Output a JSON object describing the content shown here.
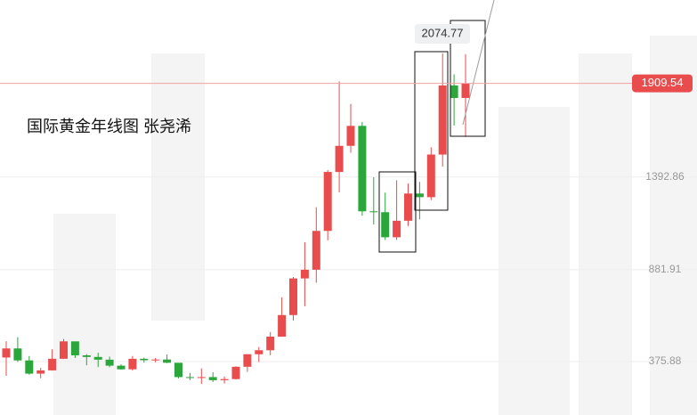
{
  "chart_data": {
    "type": "candlestick",
    "title": "国际黄金年线图  张尧浠",
    "categories": [
      null,
      null,
      null,
      null,
      null,
      null,
      null,
      null,
      null,
      null,
      null,
      null,
      null,
      null,
      null,
      null,
      null,
      null,
      null,
      null,
      null,
      null,
      null,
      null,
      null,
      null,
      null,
      null,
      null,
      null,
      null,
      null,
      null,
      null,
      null,
      null,
      null,
      null,
      null,
      null,
      null
    ],
    "open": [
      398,
      448,
      382,
      309,
      327,
      391,
      487,
      410,
      401,
      386,
      353,
      333,
      391,
      383,
      387,
      369,
      290,
      288,
      290,
      273,
      279,
      347,
      416,
      438,
      513,
      632,
      834,
      882,
      1096,
      1421,
      1565,
      1675,
      1204,
      1199,
      1061,
      1152,
      1302,
      1282,
      1517,
      1898,
      1829
    ],
    "high": [
      488,
      510,
      406,
      341,
      443,
      500,
      485,
      417,
      424,
      403,
      360,
      406,
      397,
      396,
      415,
      367,
      313,
      338,
      317,
      293,
      349,
      417,
      456,
      538,
      730,
      842,
      1033,
      1227,
      1431,
      1920,
      1796,
      1696,
      1392,
      1307,
      1375,
      1357,
      1366,
      1557,
      2075,
      1959,
      2070
    ],
    "low": [
      297,
      374,
      303,
      284,
      326,
      390,
      395,
      355,
      345,
      344,
      330,
      326,
      370,
      372,
      367,
      283,
      273,
      252,
      263,
      255,
      277,
      319,
      373,
      411,
      512,
      602,
      681,
      810,
      1044,
      1308,
      1527,
      1180,
      1131,
      1046,
      1046,
      1123,
      1160,
      1266,
      1451,
      1677,
      1614
    ],
    "close": [
      448,
      382,
      309,
      327,
      391,
      487,
      410,
      401,
      386,
      353,
      333,
      391,
      383,
      387,
      369,
      290,
      288,
      290,
      273,
      279,
      347,
      416,
      438,
      513,
      632,
      834,
      882,
      1096,
      1421,
      1565,
      1675,
      1204,
      1199,
      1061,
      1152,
      1302,
      1282,
      1517,
      1898,
      1829,
      1909.54
    ],
    "up_color": "#e84c4c",
    "down_color": "#2aa63a",
    "ylim": [
      81,
      2369
    ],
    "yticks": [
      375.88,
      881.91,
      1392.86
    ],
    "peak": 2074.77,
    "last": 1909.54
  }
}
